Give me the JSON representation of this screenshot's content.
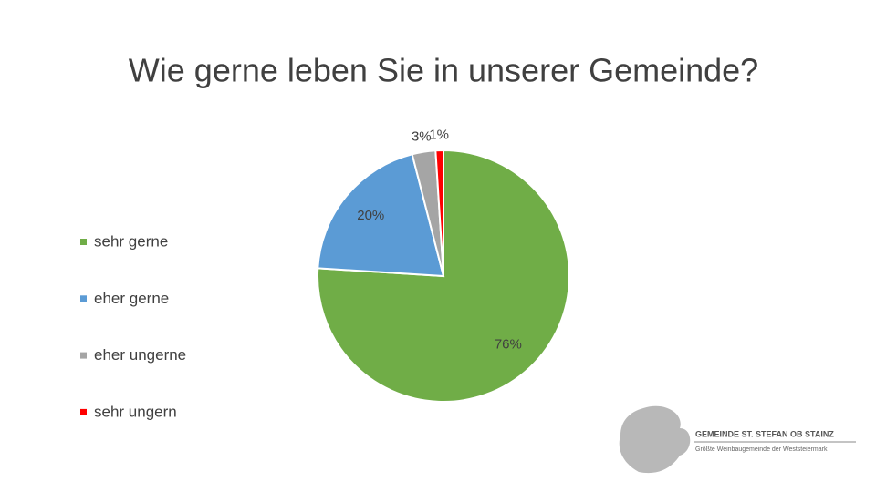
{
  "chart_data": {
    "type": "pie",
    "title": "Wie gerne leben Sie in unserer Gemeinde?",
    "categories": [
      "sehr gerne",
      "eher gerne",
      "eher ungerne",
      "sehr ungern"
    ],
    "values": [
      76,
      20,
      3,
      1
    ],
    "value_labels": [
      "76%",
      "20%",
      "3%",
      "1%"
    ],
    "colors": [
      "#70ad47",
      "#5b9bd5",
      "#a5a5a5",
      "#ff0000"
    ],
    "legend": "left"
  },
  "logo": {
    "title": "GEMEINDE ST. STEFAN OB STAINZ",
    "subtitle": "Größte Weinbaugemeinde der Weststeiermark"
  }
}
